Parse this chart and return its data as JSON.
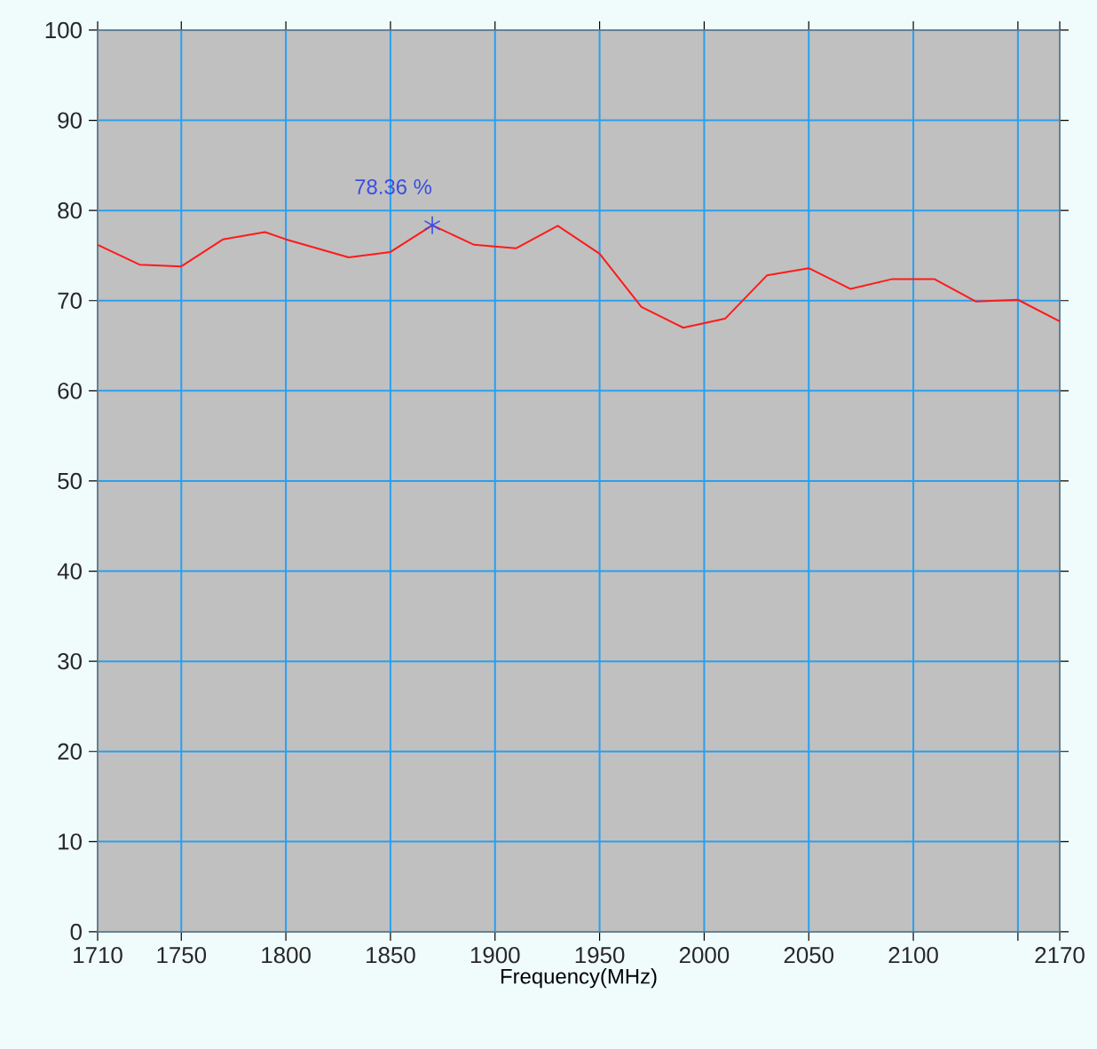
{
  "chart_data": {
    "type": "line",
    "xlabel": "Frequency(MHz)",
    "x": [
      1710,
      1730,
      1750,
      1770,
      1790,
      1800,
      1830,
      1850,
      1870,
      1890,
      1910,
      1930,
      1950,
      1970,
      1990,
      2010,
      2030,
      2050,
      2070,
      2090,
      2110,
      2130,
      2150,
      2170
    ],
    "series": [
      {
        "color": "#ff1a1a",
        "values": [
          76.2,
          74.0,
          73.8,
          76.8,
          77.6,
          76.8,
          74.8,
          75.4,
          78.36,
          76.2,
          75.8,
          78.3,
          75.2,
          69.3,
          67.0,
          68.0,
          72.8,
          73.6,
          71.3,
          72.4,
          72.4,
          69.9,
          70.1,
          67.7
        ]
      },
      {
        "type": "scatter",
        "color": "#3c4ee0",
        "marker": "cross",
        "x": [
          1870
        ],
        "values": [
          78.36
        ]
      }
    ],
    "annotations": [
      {
        "text": "78.36 %",
        "x": 1870,
        "y": 78.36
      }
    ],
    "xlim": [
      1710,
      2170
    ],
    "ylim": [
      0,
      100
    ],
    "xticks": [
      1710,
      1750,
      1800,
      1850,
      1900,
      1950,
      2000,
      2050,
      2100,
      {
        "value": 2150,
        "label": null
      },
      2170
    ],
    "yticks": [
      0,
      10,
      20,
      30,
      40,
      50,
      60,
      70,
      80,
      90,
      100
    ],
    "grid": true,
    "legend": false
  }
}
